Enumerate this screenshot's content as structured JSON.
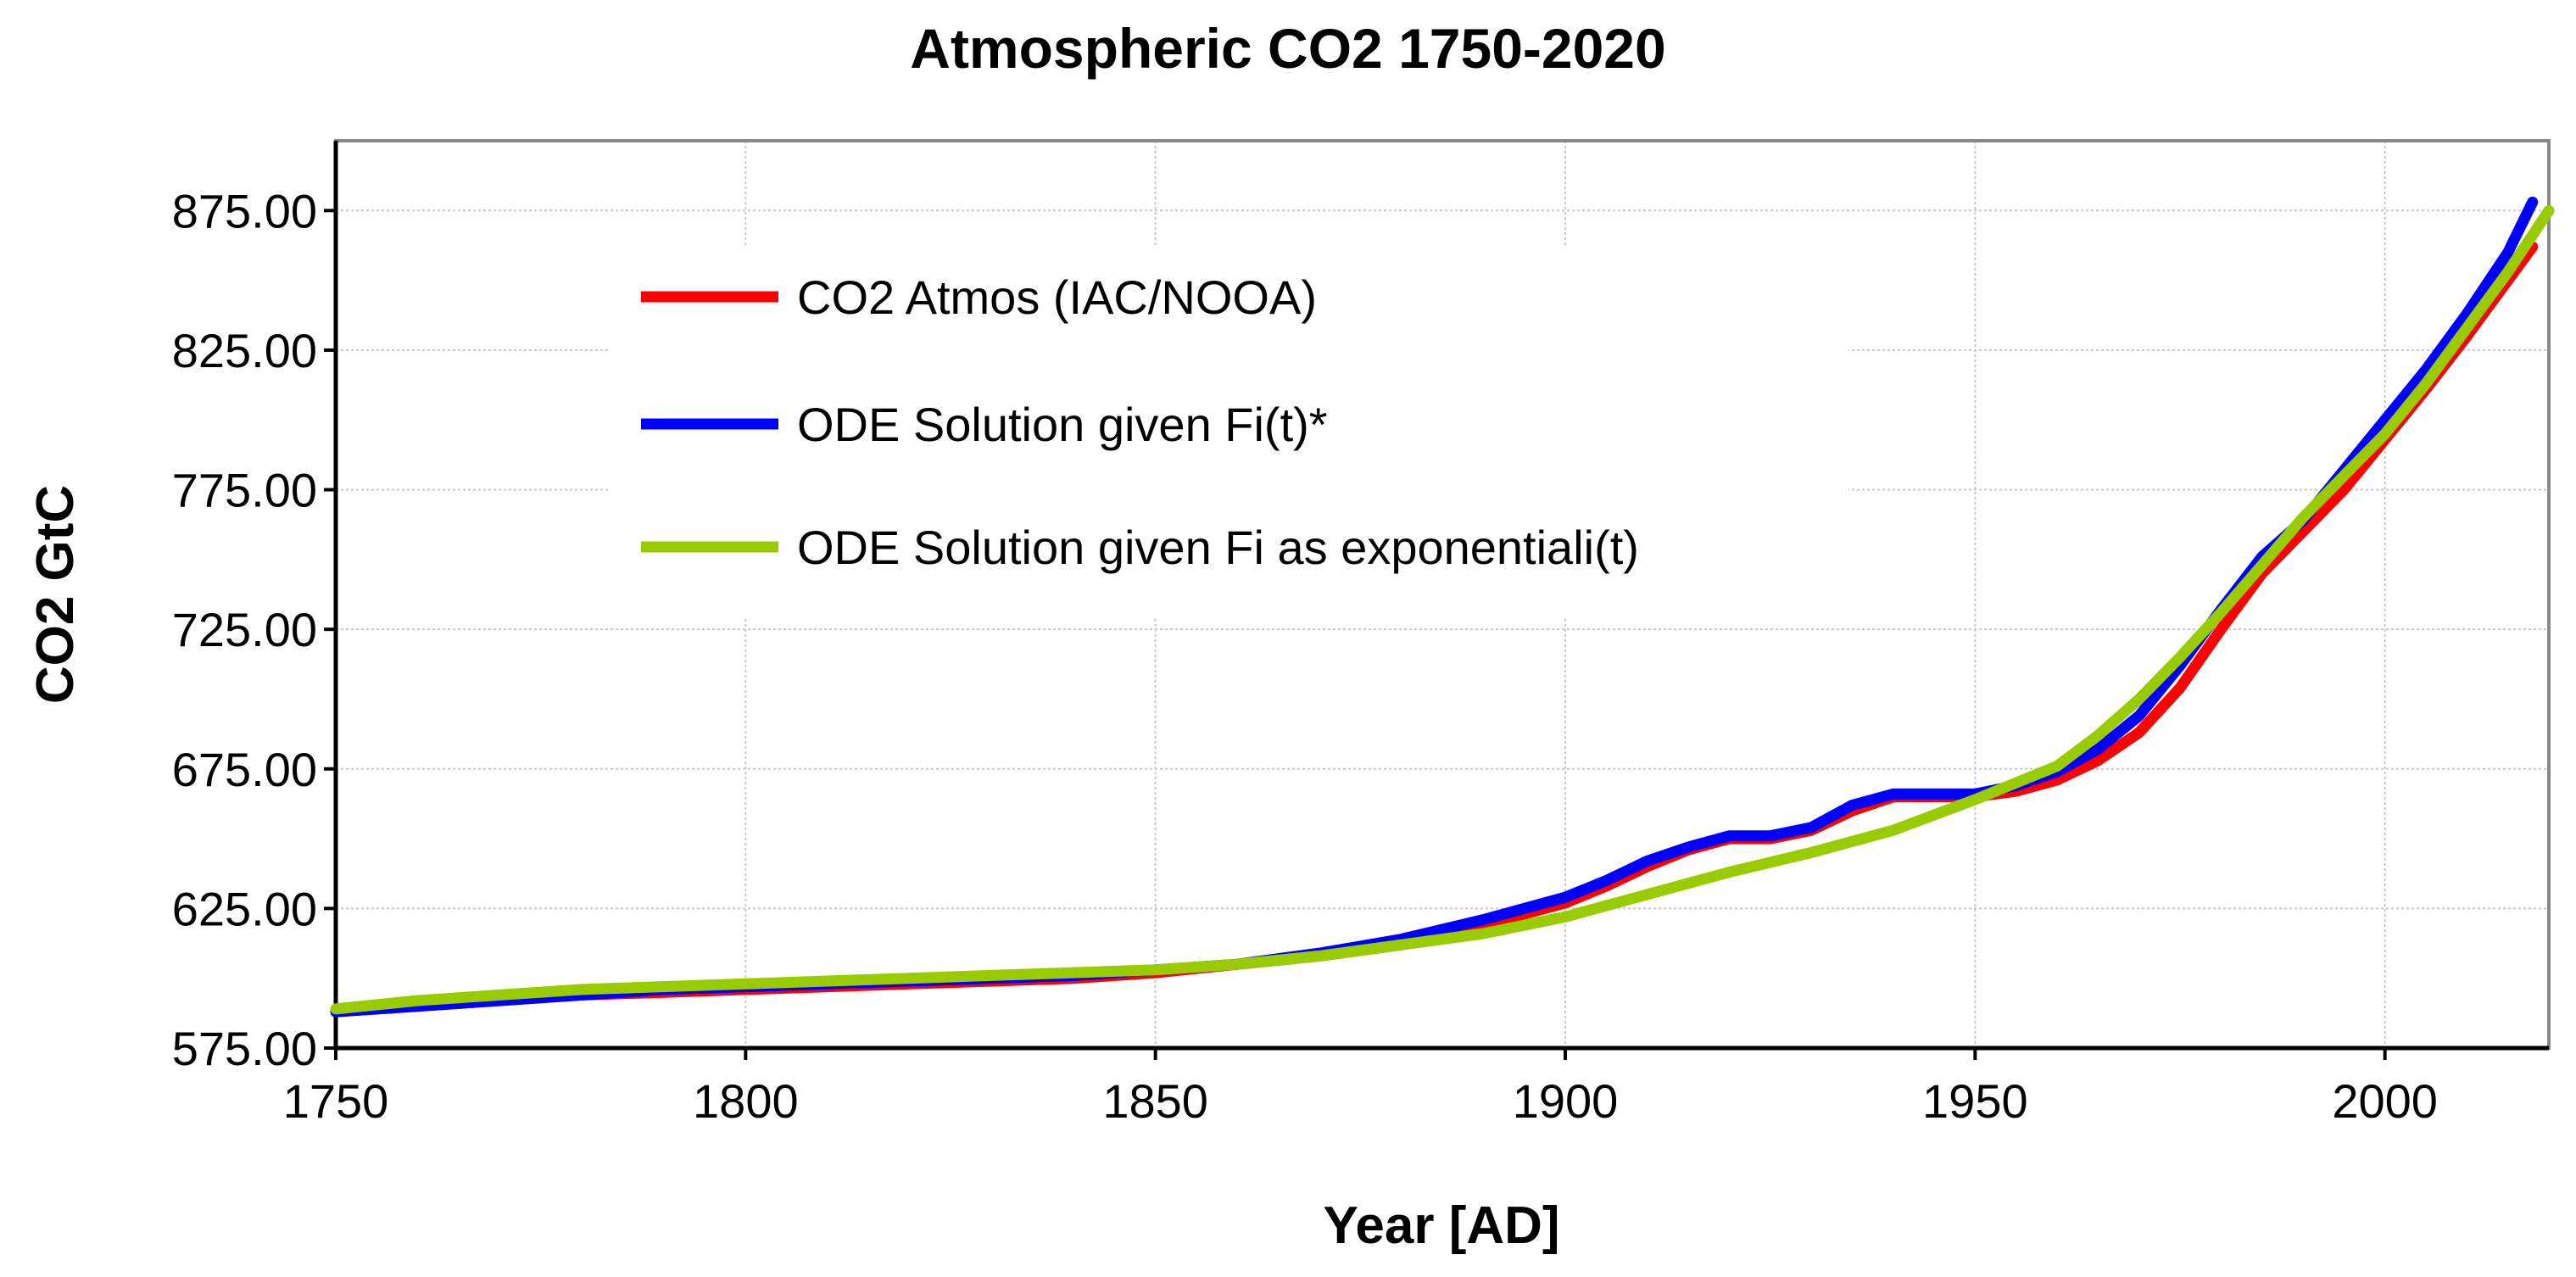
{
  "chart_data": {
    "type": "line",
    "title": "Atmospheric CO2 1750-2020",
    "xlabel": "Year [AD]",
    "ylabel": "CO2 GtC",
    "xlim": [
      1750,
      2020
    ],
    "ylim": [
      575,
      900
    ],
    "x_ticks": [
      1750,
      1800,
      1850,
      1900,
      1950,
      2000
    ],
    "y_ticks": [
      575,
      625,
      675,
      725,
      775,
      825,
      875
    ],
    "x_tick_labels": [
      "1750",
      "1800",
      "1850",
      "1900",
      "1950",
      "2000"
    ],
    "y_tick_labels": [
      "575.00",
      "625.00",
      "675.00",
      "725.00",
      "775.00",
      "825.00",
      "875.00"
    ],
    "grid": true,
    "legend_position": "top-left",
    "series": [
      {
        "name": "CO2 Atmos (IAC/NOOA)",
        "color": "#ff0000",
        "x": [
          1750,
          1760,
          1770,
          1780,
          1790,
          1800,
          1810,
          1820,
          1830,
          1840,
          1850,
          1860,
          1870,
          1880,
          1890,
          1900,
          1905,
          1910,
          1915,
          1920,
          1925,
          1930,
          1935,
          1940,
          1945,
          1950,
          1955,
          1960,
          1965,
          1970,
          1975,
          1980,
          1985,
          1990,
          1995,
          2000,
          2005,
          2010,
          2015,
          2018
        ],
        "values": [
          588,
          590,
          592,
          594,
          595,
          596,
          597,
          598,
          599,
          600,
          602,
          605,
          608,
          612,
          619,
          627,
          633,
          640,
          646,
          650,
          650,
          653,
          660,
          665,
          665,
          665,
          667,
          671,
          678,
          688,
          704,
          725,
          745,
          760,
          775,
          793,
          811,
          830,
          850,
          862
        ]
      },
      {
        "name": "ODE Solution given Fi(t)*",
        "color": "#0000ff",
        "x": [
          1750,
          1760,
          1770,
          1780,
          1790,
          1800,
          1810,
          1820,
          1830,
          1840,
          1850,
          1860,
          1870,
          1880,
          1890,
          1900,
          1905,
          1910,
          1915,
          1920,
          1925,
          1930,
          1935,
          1940,
          1945,
          1950,
          1955,
          1960,
          1965,
          1970,
          1975,
          1980,
          1985,
          1990,
          1995,
          2000,
          2005,
          2010,
          2015,
          2018
        ],
        "values": [
          588,
          590,
          592,
          594,
          596,
          597,
          598,
          599,
          600,
          601,
          603,
          605,
          609,
          614,
          621,
          629,
          635,
          642,
          647,
          651,
          651,
          654,
          662,
          666,
          666,
          666,
          669,
          674,
          682,
          694,
          712,
          732,
          751,
          764,
          782,
          800,
          818,
          838,
          860,
          878
        ]
      },
      {
        "name": "ODE Solution given Fi as exponentiali(t)",
        "color": "#99cc00",
        "x": [
          1750,
          1760,
          1770,
          1780,
          1790,
          1800,
          1810,
          1820,
          1830,
          1840,
          1850,
          1860,
          1870,
          1880,
          1890,
          1900,
          1910,
          1920,
          1930,
          1940,
          1950,
          1960,
          1965,
          1970,
          1975,
          1980,
          1985,
          1990,
          1995,
          2000,
          2005,
          2010,
          2015,
          2020
        ],
        "values": [
          589,
          592,
          594,
          596,
          597,
          598,
          599,
          600,
          601,
          602,
          603,
          605,
          608,
          612,
          616,
          622,
          630,
          638,
          645,
          653,
          664,
          676,
          687,
          700,
          715,
          731,
          748,
          765,
          780,
          795,
          813,
          833,
          853,
          875
        ]
      }
    ]
  }
}
